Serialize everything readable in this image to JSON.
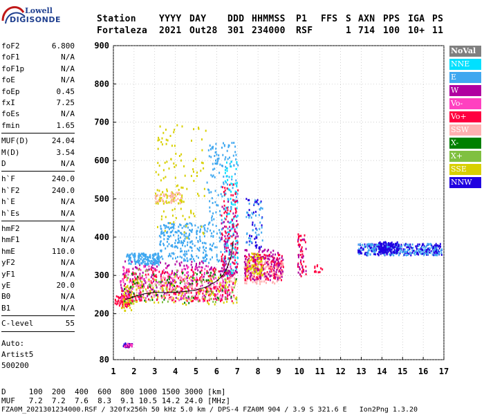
{
  "logo": {
    "line1": "Lowell",
    "line2": "DIGISONDE"
  },
  "header": {
    "row1": [
      "Station",
      "YYYY",
      "DAY",
      "DDD",
      "HHMMSS",
      "P1",
      "FFS",
      "S",
      "AXN",
      "PPS",
      "IGA",
      "PS"
    ],
    "row2": [
      "Fortaleza",
      "2021",
      "Out28",
      "301",
      "234000",
      "RSF",
      "",
      "1",
      "714",
      "100",
      "10+",
      "11"
    ]
  },
  "params": {
    "group1": [
      {
        "k": "foF2",
        "v": "6.800"
      },
      {
        "k": "foF1",
        "v": "N/A"
      },
      {
        "k": "foF1p",
        "v": "N/A"
      },
      {
        "k": "foE",
        "v": "N/A"
      },
      {
        "k": "foEp",
        "v": "0.45"
      },
      {
        "k": "fxI",
        "v": "7.25"
      },
      {
        "k": "foEs",
        "v": "N/A"
      },
      {
        "k": "fmin",
        "v": "1.65"
      }
    ],
    "group2": [
      {
        "k": "MUF(D)",
        "v": "24.04"
      },
      {
        "k": "M(D)",
        "v": "3.54"
      },
      {
        "k": "D",
        "v": "N/A"
      }
    ],
    "group3": [
      {
        "k": "h`F",
        "v": "240.0"
      },
      {
        "k": "h`F2",
        "v": "240.0"
      },
      {
        "k": "h`E",
        "v": "N/A"
      },
      {
        "k": "h`Es",
        "v": "N/A"
      }
    ],
    "group4": [
      {
        "k": "hmF2",
        "v": "N/A"
      },
      {
        "k": "hmF1",
        "v": "N/A"
      },
      {
        "k": "hmE",
        "v": "110.0"
      },
      {
        "k": "yF2",
        "v": "N/A"
      },
      {
        "k": "yF1",
        "v": "N/A"
      },
      {
        "k": "yE",
        "v": "20.0"
      },
      {
        "k": "B0",
        "v": "N/A"
      },
      {
        "k": "B1",
        "v": "N/A"
      }
    ],
    "group5": [
      {
        "k": "C-level",
        "v": "55"
      }
    ],
    "auto": [
      "Auto:",
      "Artist5",
      "500200"
    ]
  },
  "legend": [
    {
      "label": "NoVal",
      "color": "#808080"
    },
    {
      "label": "NNE",
      "color": "#00e0ff"
    },
    {
      "label": "E",
      "color": "#40a8f0"
    },
    {
      "label": "W",
      "color": "#b000a0"
    },
    {
      "label": "Vo-",
      "color": "#ff40c0"
    },
    {
      "label": "Vo+",
      "color": "#ff0040"
    },
    {
      "label": "SSW",
      "color": "#ffb0b0"
    },
    {
      "label": "X-",
      "color": "#008000"
    },
    {
      "label": "X+",
      "color": "#80c040"
    },
    {
      "label": "SSE",
      "color": "#d8d000"
    },
    {
      "label": "NNW",
      "color": "#2000e0"
    }
  ],
  "bottom": {
    "d_row": "D     100  200  400  600  800 1000 1500 3000 [km]",
    "muf_row": "MUF   7.2  7.2  7.6  8.3  9.1 10.5 14.2 24.0 [MHz]",
    "file_row": "FZA0M_2021301234000.RSF / 320fx256h 50 kHz 5.0 km / DPS-4 FZA0M 904 / 3.9 S 321.6 E   Ion2Png 1.3.20"
  },
  "chart_data": {
    "type": "scatter",
    "xlim": [
      1,
      17
    ],
    "ylim": [
      80,
      900
    ],
    "x_ticks": [
      1,
      2,
      3,
      4,
      5,
      6,
      7,
      8,
      9,
      10,
      11,
      12,
      13,
      14,
      15,
      16,
      17
    ],
    "y_ticks": [
      80,
      200,
      300,
      400,
      500,
      600,
      700,
      800,
      900
    ],
    "grid": true,
    "legend_position": "right",
    "clusters": [
      {
        "type": "rect",
        "x": [
          1.05,
          1.9
        ],
        "y": [
          220,
          250
        ],
        "color": "#ff0040",
        "n": 60
      },
      {
        "type": "rect",
        "x": [
          1.3,
          2.0
        ],
        "y": [
          210,
          270
        ],
        "color": "#d8d000",
        "n": 40
      },
      {
        "type": "rect",
        "x": [
          1.3,
          6.8
        ],
        "y": [
          240,
          340
        ],
        "color": "#b000a0",
        "n": 260
      },
      {
        "type": "rect",
        "x": [
          1.3,
          6.8
        ],
        "y": [
          235,
          330
        ],
        "color": "#ff40c0",
        "n": 220
      },
      {
        "type": "rect",
        "x": [
          1.3,
          6.8
        ],
        "y": [
          235,
          320
        ],
        "color": "#ff0040",
        "n": 220
      },
      {
        "type": "rect",
        "x": [
          2.0,
          7.0
        ],
        "y": [
          240,
          300
        ],
        "color": "#ffb0b0",
        "n": 120
      },
      {
        "type": "rect",
        "x": [
          1.5,
          7.0
        ],
        "y": [
          225,
          300
        ],
        "color": "#d8d000",
        "n": 110
      },
      {
        "type": "rect",
        "x": [
          1.5,
          7.0
        ],
        "y": [
          230,
          310
        ],
        "color": "#008000",
        "n": 60
      },
      {
        "type": "rect",
        "x": [
          1.5,
          7.0
        ],
        "y": [
          230,
          320
        ],
        "color": "#80c040",
        "n": 60
      },
      {
        "type": "rect",
        "x": [
          1.6,
          3.2
        ],
        "y": [
          330,
          360
        ],
        "color": "#40a8f0",
        "n": 160
      },
      {
        "type": "rect",
        "x": [
          3.2,
          5.5
        ],
        "y": [
          340,
          440
        ],
        "color": "#40a8f0",
        "n": 220
      },
      {
        "type": "rect",
        "x": [
          5.5,
          7.0
        ],
        "y": [
          330,
          650
        ],
        "color": "#40a8f0",
        "n": 200
      },
      {
        "type": "rect",
        "x": [
          6.3,
          7.0
        ],
        "y": [
          300,
          600
        ],
        "color": "#00e0ff",
        "n": 80
      },
      {
        "type": "rect",
        "x": [
          3.0,
          5.5
        ],
        "y": [
          400,
          700
        ],
        "color": "#d8d000",
        "n": 110
      },
      {
        "type": "rect",
        "x": [
          3.0,
          4.3
        ],
        "y": [
          490,
          520
        ],
        "color": "#d8d000",
        "n": 50
      },
      {
        "type": "rect",
        "x": [
          3.0,
          4.3
        ],
        "y": [
          490,
          520
        ],
        "color": "#ffb0b0",
        "n": 40
      },
      {
        "type": "rect",
        "x": [
          6.2,
          7.0
        ],
        "y": [
          300,
          540
        ],
        "color": "#ff0040",
        "n": 90
      },
      {
        "type": "rect",
        "x": [
          6.2,
          7.0
        ],
        "y": [
          300,
          500
        ],
        "color": "#b000a0",
        "n": 60
      },
      {
        "type": "rect",
        "x": [
          7.3,
          9.2
        ],
        "y": [
          290,
          360
        ],
        "color": "#ff0040",
        "n": 180
      },
      {
        "type": "rect",
        "x": [
          7.3,
          9.2
        ],
        "y": [
          280,
          340
        ],
        "color": "#ffb0b0",
        "n": 120
      },
      {
        "type": "rect",
        "x": [
          7.3,
          9.2
        ],
        "y": [
          290,
          370
        ],
        "color": "#b000a0",
        "n": 120
      },
      {
        "type": "rect",
        "x": [
          7.4,
          8.2
        ],
        "y": [
          370,
          510
        ],
        "color": "#2000e0",
        "n": 40
      },
      {
        "type": "rect",
        "x": [
          7.4,
          8.2
        ],
        "y": [
          380,
          500
        ],
        "color": "#40a8f0",
        "n": 40
      },
      {
        "type": "rect",
        "x": [
          7.4,
          8.2
        ],
        "y": [
          300,
          360
        ],
        "color": "#d8d000",
        "n": 60
      },
      {
        "type": "rect",
        "x": [
          9.9,
          10.3
        ],
        "y": [
          300,
          410
        ],
        "color": "#ff0040",
        "n": 40
      },
      {
        "type": "rect",
        "x": [
          9.9,
          10.3
        ],
        "y": [
          300,
          400
        ],
        "color": "#b000a0",
        "n": 20
      },
      {
        "type": "rect",
        "x": [
          10.7,
          11.1
        ],
        "y": [
          310,
          330
        ],
        "color": "#ff0040",
        "n": 12
      },
      {
        "type": "rect",
        "x": [
          12.8,
          16.9
        ],
        "y": [
          355,
          385
        ],
        "color": "#2000e0",
        "n": 220
      },
      {
        "type": "rect",
        "x": [
          12.8,
          16.9
        ],
        "y": [
          355,
          385
        ],
        "color": "#40a8f0",
        "n": 160
      },
      {
        "type": "rect",
        "x": [
          13.8,
          14.8
        ],
        "y": [
          360,
          390
        ],
        "color": "#2000e0",
        "n": 120
      },
      {
        "type": "rect",
        "x": [
          1.45,
          1.9
        ],
        "y": [
          115,
          125
        ],
        "color": "#2000e0",
        "n": 25
      },
      {
        "type": "rect",
        "x": [
          1.5,
          1.9
        ],
        "y": [
          115,
          125
        ],
        "color": "#b000a0",
        "n": 15
      },
      {
        "type": "rect",
        "x": [
          1.5,
          1.9
        ],
        "y": [
          115,
          125
        ],
        "color": "#ff40c0",
        "n": 10
      }
    ],
    "trace": {
      "color": "#000000",
      "x": [
        1.6,
        1.8,
        2.0,
        2.5,
        3.0,
        3.5,
        4.0,
        4.5,
        5.0,
        5.5,
        6.0,
        6.3,
        6.5,
        6.7,
        6.8
      ],
      "y": [
        238,
        240,
        245,
        252,
        256,
        255,
        256,
        258,
        262,
        270,
        285,
        300,
        320,
        350,
        390
      ]
    }
  }
}
